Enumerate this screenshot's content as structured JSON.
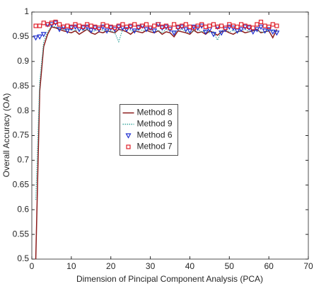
{
  "chart_data": {
    "type": "line",
    "xlabel": "Dimension of Pincipal Component Analysis (PCA)",
    "ylabel": "Overall Accuracy (OA)",
    "xlim": [
      0,
      70
    ],
    "xticks": [
      0,
      10,
      20,
      30,
      40,
      50,
      60,
      70
    ],
    "ylim": [
      0.5,
      1
    ],
    "yticks": [
      0.5,
      0.55,
      0.6,
      0.65,
      0.7,
      0.75,
      0.8,
      0.85,
      0.9,
      0.95,
      1
    ],
    "legend": "center",
    "x": [
      1,
      2,
      3,
      4,
      5,
      6,
      7,
      8,
      9,
      10,
      11,
      12,
      13,
      14,
      15,
      16,
      17,
      18,
      19,
      20,
      21,
      22,
      23,
      24,
      25,
      26,
      27,
      28,
      29,
      30,
      31,
      32,
      33,
      34,
      35,
      36,
      37,
      38,
      39,
      40,
      41,
      42,
      43,
      44,
      45,
      46,
      47,
      48,
      49,
      50,
      51,
      52,
      53,
      54,
      55,
      56,
      57,
      58,
      59,
      60,
      61,
      62
    ],
    "series": [
      {
        "name": "Method 8",
        "color": "#8b1a1a",
        "style": "solid",
        "values": [
          0.5,
          0.84,
          0.93,
          0.955,
          0.97,
          0.968,
          0.965,
          0.962,
          0.96,
          0.958,
          0.962,
          0.955,
          0.96,
          0.965,
          0.958,
          0.955,
          0.96,
          0.958,
          0.962,
          0.96,
          0.958,
          0.965,
          0.963,
          0.96,
          0.955,
          0.962,
          0.96,
          0.958,
          0.963,
          0.96,
          0.958,
          0.962,
          0.955,
          0.96,
          0.958,
          0.95,
          0.962,
          0.96,
          0.958,
          0.955,
          0.963,
          0.958,
          0.96,
          0.955,
          0.962,
          0.958,
          0.953,
          0.96,
          0.962,
          0.958,
          0.955,
          0.96,
          0.962,
          0.958,
          0.96,
          0.962,
          0.965,
          0.958,
          0.96,
          0.962,
          0.948,
          0.965
        ]
      },
      {
        "name": "Method 9",
        "color": "#3aa8a0",
        "style": "dotted",
        "values": [
          0.62,
          0.86,
          0.94,
          0.96,
          0.972,
          0.97,
          0.968,
          0.965,
          0.963,
          0.965,
          0.962,
          0.966,
          0.963,
          0.965,
          0.96,
          0.962,
          0.965,
          0.963,
          0.96,
          0.962,
          0.958,
          0.94,
          0.965,
          0.968,
          0.963,
          0.96,
          0.965,
          0.963,
          0.962,
          0.965,
          0.96,
          0.963,
          0.958,
          0.965,
          0.962,
          0.96,
          0.963,
          0.965,
          0.96,
          0.958,
          0.962,
          0.965,
          0.96,
          0.962,
          0.958,
          0.96,
          0.943,
          0.962,
          0.965,
          0.96,
          0.963,
          0.958,
          0.962,
          0.965,
          0.96,
          0.963,
          0.962,
          0.96,
          0.958,
          0.965,
          0.962,
          0.96
        ]
      },
      {
        "name": "Method 6",
        "color": "#1f2fd0",
        "style": "triangle",
        "values": [
          0.948,
          0.95,
          0.955,
          0.975,
          0.975,
          0.978,
          0.965,
          0.97,
          0.962,
          0.968,
          0.97,
          0.965,
          0.968,
          0.97,
          0.963,
          0.968,
          0.965,
          0.97,
          0.962,
          0.968,
          0.965,
          0.97,
          0.968,
          0.965,
          0.97,
          0.962,
          0.968,
          0.972,
          0.965,
          0.968,
          0.962,
          0.975,
          0.968,
          0.97,
          0.965,
          0.958,
          0.968,
          0.97,
          0.965,
          0.962,
          0.97,
          0.968,
          0.972,
          0.96,
          0.965,
          0.955,
          0.97,
          0.958,
          0.965,
          0.97,
          0.968,
          0.962,
          0.965,
          0.97,
          0.968,
          0.96,
          0.965,
          0.97,
          0.962,
          0.965,
          0.96,
          0.958
        ]
      },
      {
        "name": "Method 7",
        "color": "#e0202a",
        "style": "square",
        "values": [
          0.972,
          0.972,
          0.978,
          0.975,
          0.978,
          0.98,
          0.975,
          0.97,
          0.972,
          0.97,
          0.975,
          0.972,
          0.97,
          0.975,
          0.972,
          0.97,
          0.968,
          0.975,
          0.972,
          0.97,
          0.968,
          0.972,
          0.975,
          0.97,
          0.972,
          0.975,
          0.97,
          0.972,
          0.975,
          0.968,
          0.972,
          0.975,
          0.97,
          0.972,
          0.968,
          0.975,
          0.97,
          0.972,
          0.975,
          0.97,
          0.968,
          0.972,
          0.975,
          0.97,
          0.972,
          0.975,
          0.97,
          0.972,
          0.968,
          0.975,
          0.972,
          0.97,
          0.975,
          0.972,
          0.97,
          0.968,
          0.975,
          0.98,
          0.972,
          0.97,
          0.975,
          0.972
        ]
      }
    ]
  }
}
